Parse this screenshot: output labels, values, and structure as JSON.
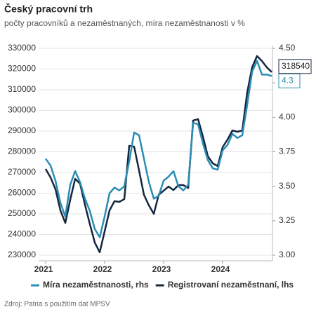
{
  "chart_data": {
    "type": "line",
    "title": "Český pracovní trh",
    "subtitle": "počty pracovníků a nezaměstnaných, míra nezaměstnanosti v %",
    "source": "Zdroj: Patria s použitím dat MPSV",
    "categories": [
      "2021",
      null,
      null,
      null,
      null,
      null,
      null,
      null,
      null,
      null,
      null,
      null,
      "2022",
      null,
      null,
      null,
      null,
      null,
      null,
      null,
      null,
      null,
      null,
      null,
      "2023",
      null,
      null,
      null,
      null,
      null,
      null,
      null,
      null,
      null,
      null,
      null,
      "2024",
      null,
      null,
      null,
      null,
      null,
      null,
      null,
      null,
      null,
      null
    ],
    "ylim": [
      230000,
      330000
    ],
    "yticks": [
      230000,
      240000,
      250000,
      260000,
      270000,
      280000,
      290000,
      300000,
      310000,
      320000,
      330000
    ],
    "y2lim": [
      3,
      4.5
    ],
    "y2ticks": [
      {
        "value": 3,
        "label": "3.00"
      },
      3.25,
      {
        "value": 3.5,
        "label": "3.50"
      },
      3.75,
      {
        "value": 4,
        "label": "4.00"
      },
      4.25,
      {
        "value": 4.5,
        "label": "4.50"
      }
    ],
    "grid": true,
    "legend": "bottom",
    "series": [
      {
        "name": "Míra nezaměstnanosti, rhs",
        "color": "#2b8cb4",
        "axis": "y2",
        "values": [
          3.7,
          3.65,
          3.54,
          3.38,
          3.28,
          3.51,
          3.61,
          3.53,
          3.41,
          3.32,
          3.19,
          3.13,
          3.28,
          3.45,
          3.49,
          3.47,
          3.5,
          3.68,
          3.89,
          3.87,
          3.7,
          3.53,
          3.41,
          3.43,
          3.54,
          3.57,
          3.61,
          3.5,
          3.47,
          3.51,
          3.96,
          3.95,
          3.81,
          3.69,
          3.63,
          3.62,
          3.76,
          3.8,
          3.88,
          3.85,
          3.87,
          4.09,
          4.33,
          4.41,
          4.31,
          4.31,
          4.3
        ]
      },
      {
        "name": "Registrovaní nezaměstnaní, lhs",
        "color": "#14273f",
        "values": [
          271700,
          267600,
          261900,
          251700,
          245600,
          256800,
          266900,
          264600,
          254400,
          245000,
          236100,
          231400,
          241500,
          251700,
          256100,
          255800,
          257100,
          282900,
          282500,
          271000,
          259200,
          254100,
          250000,
          259200,
          261200,
          263200,
          261500,
          263900,
          263900,
          262500,
          295100,
          295800,
          287300,
          277800,
          274400,
          273100,
          282200,
          285900,
          290300,
          289700,
          290300,
          308600,
          320800,
          326300,
          323900,
          320800,
          318540
        ]
      }
    ]
  }
}
